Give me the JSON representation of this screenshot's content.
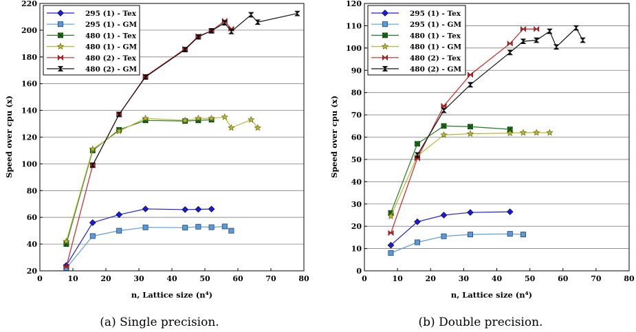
{
  "charts": [
    {
      "caption": "(a) Single precision.",
      "chart_data": {
        "type": "line",
        "xlabel": "n, Lattice size (n⁴)",
        "ylabel": "Speed over cpu (x)",
        "xlim": [
          0,
          80
        ],
        "ylim": [
          20,
          220
        ],
        "xticks": [
          0,
          10,
          20,
          30,
          40,
          50,
          60,
          70,
          80
        ],
        "yticks": [
          20,
          40,
          60,
          80,
          100,
          120,
          140,
          160,
          180,
          200,
          220
        ],
        "grid": "horizontal",
        "legend_position": "top-left",
        "series": [
          {
            "name": "295 (1) - Tex",
            "color": "#1a1adb",
            "marker": "diamond",
            "points": [
              [
                8,
                24
              ],
              [
                16,
                56
              ],
              [
                24,
                62
              ],
              [
                32,
                66.3
              ],
              [
                44,
                65.8
              ],
              [
                48,
                66
              ],
              [
                52,
                66.2
              ]
            ]
          },
          {
            "name": "295 (1) - GM",
            "color": "#5b9bd5",
            "marker": "square",
            "points": [
              [
                8,
                22
              ],
              [
                16,
                46
              ],
              [
                24,
                50
              ],
              [
                32,
                52.5
              ],
              [
                44,
                52.3
              ],
              [
                48,
                53
              ],
              [
                52,
                52.6
              ],
              [
                56,
                53.2
              ],
              [
                58,
                50
              ]
            ]
          },
          {
            "name": "480 (1) - Tex",
            "color": "#207a20",
            "marker": "xsquare",
            "points": [
              [
                8,
                40
              ],
              [
                16,
                110
              ],
              [
                24,
                125.5
              ],
              [
                32,
                132.5
              ],
              [
                44,
                132
              ],
              [
                48,
                132.5
              ],
              [
                52,
                133
              ]
            ]
          },
          {
            "name": "480 (1) - GM",
            "color": "#b8b830",
            "marker": "star",
            "points": [
              [
                8,
                42
              ],
              [
                16,
                111
              ],
              [
                24,
                124.5
              ],
              [
                32,
                134
              ],
              [
                44,
                132.5
              ],
              [
                48,
                134
              ],
              [
                52,
                134
              ],
              [
                56,
                135
              ],
              [
                58,
                127
              ],
              [
                64,
                133
              ],
              [
                66,
                127
              ]
            ]
          },
          {
            "name": "480 (2) - Tex",
            "color": "#cc2222",
            "marker": "bowtie",
            "points": [
              [
                8,
                23
              ],
              [
                16,
                99
              ],
              [
                24,
                137
              ],
              [
                32,
                165.5
              ],
              [
                44,
                186
              ],
              [
                48,
                195.5
              ],
              [
                52,
                199.5
              ],
              [
                56,
                207
              ],
              [
                58,
                201
              ]
            ]
          },
          {
            "name": "480 (2) - GM",
            "color": "#111111",
            "marker": "hourglass",
            "points": [
              [
                16,
                99
              ],
              [
                24,
                137
              ],
              [
                32,
                165
              ],
              [
                44,
                185.5
              ],
              [
                48,
                195
              ],
              [
                52,
                199.5
              ],
              [
                56,
                205.5
              ],
              [
                58,
                199
              ],
              [
                64,
                211.5
              ],
              [
                66,
                206
              ],
              [
                78,
                212.5
              ]
            ]
          }
        ]
      }
    },
    {
      "caption": "(b) Double precision.",
      "chart_data": {
        "type": "line",
        "xlabel": "n, Lattice size (n⁴)",
        "ylabel": "Speed over cpu (x)",
        "xlim": [
          0,
          80
        ],
        "ylim": [
          0,
          120
        ],
        "xticks": [
          0,
          10,
          20,
          30,
          40,
          50,
          60,
          70,
          80
        ],
        "yticks": [
          0,
          10,
          20,
          30,
          40,
          50,
          60,
          70,
          80,
          90,
          100,
          110,
          120
        ],
        "grid": "horizontal",
        "legend_position": "top-left",
        "series": [
          {
            "name": "295 (1) - Tex",
            "color": "#1a1adb",
            "marker": "diamond",
            "points": [
              [
                8,
                11.5
              ],
              [
                16,
                22
              ],
              [
                24,
                25
              ],
              [
                32,
                26.2
              ],
              [
                44,
                26.5
              ]
            ]
          },
          {
            "name": "295 (1) - GM",
            "color": "#5b9bd5",
            "marker": "square",
            "points": [
              [
                8,
                8
              ],
              [
                16,
                12.8
              ],
              [
                24,
                15.5
              ],
              [
                32,
                16.3
              ],
              [
                44,
                16.6
              ],
              [
                48,
                16.3
              ]
            ]
          },
          {
            "name": "480 (1) - Tex",
            "color": "#207a20",
            "marker": "xsquare",
            "points": [
              [
                8,
                26
              ],
              [
                16,
                57
              ],
              [
                24,
                65
              ],
              [
                32,
                64.7
              ],
              [
                44,
                63.5
              ]
            ]
          },
          {
            "name": "480 (1) - GM",
            "color": "#b8b830",
            "marker": "star",
            "points": [
              [
                8,
                24.5
              ],
              [
                16,
                51.5
              ],
              [
                24,
                61
              ],
              [
                32,
                61.5
              ],
              [
                44,
                61.8
              ],
              [
                48,
                62
              ],
              [
                52,
                62
              ],
              [
                56,
                62
              ]
            ]
          },
          {
            "name": "480 (2) - Tex",
            "color": "#cc2222",
            "marker": "bowtie",
            "points": [
              [
                8,
                17
              ],
              [
                16,
                50.5
              ],
              [
                24,
                74
              ],
              [
                32,
                88
              ],
              [
                44,
                102
              ],
              [
                48,
                108.5
              ],
              [
                52,
                108.5
              ]
            ]
          },
          {
            "name": "480 (2) - GM",
            "color": "#111111",
            "marker": "hourglass",
            "points": [
              [
                16,
                52
              ],
              [
                24,
                72
              ],
              [
                32,
                83.5
              ],
              [
                44,
                98
              ],
              [
                48,
                103
              ],
              [
                52,
                103.5
              ],
              [
                56,
                107.5
              ],
              [
                58,
                100.5
              ],
              [
                64,
                109
              ],
              [
                66,
                103.5
              ]
            ]
          }
        ]
      }
    }
  ]
}
